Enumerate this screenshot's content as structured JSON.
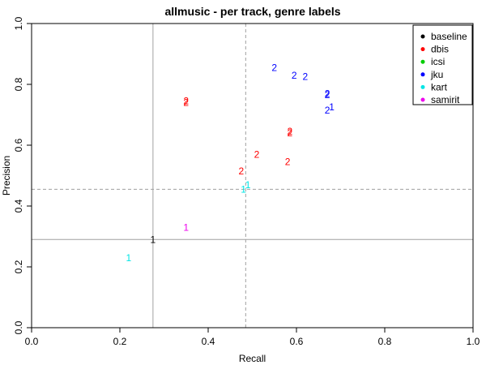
{
  "chart_data": {
    "type": "scatter",
    "title": "allmusic - per track, genre labels",
    "xlabel": "Recall",
    "ylabel": "Precision",
    "xlim": [
      0,
      1
    ],
    "ylim": [
      0,
      1
    ],
    "xticks": [
      "0.0",
      "0.2",
      "0.4",
      "0.6",
      "0.8",
      "1.0"
    ],
    "yticks": [
      "0.0",
      "0.2",
      "0.4",
      "0.6",
      "0.8",
      "1.0"
    ],
    "xtick_values": [
      0,
      0.2,
      0.4,
      0.6,
      0.8,
      1.0
    ],
    "ytick_values": [
      0,
      0.2,
      0.4,
      0.6,
      0.8,
      1.0
    ],
    "legend_position": "top-right",
    "reference_lines": [
      {
        "orientation": "vertical",
        "value": 0.275,
        "style": "solid",
        "color": "#a0a0a0"
      },
      {
        "orientation": "horizontal",
        "value": 0.29,
        "style": "solid",
        "color": "#a0a0a0"
      },
      {
        "orientation": "vertical",
        "value": 0.485,
        "style": "dashed",
        "color": "#a0a0a0"
      },
      {
        "orientation": "horizontal",
        "value": 0.455,
        "style": "dashed",
        "color": "#a0a0a0"
      }
    ],
    "series": [
      {
        "name": "baseline",
        "color": "#000000",
        "points": [
          {
            "x": 0.275,
            "y": 0.29,
            "label": "1"
          }
        ]
      },
      {
        "name": "dbis",
        "color": "#ff0000",
        "points": [
          {
            "x": 0.35,
            "y": 0.74,
            "label": "2"
          },
          {
            "x": 0.35,
            "y": 0.745,
            "label": "2"
          },
          {
            "x": 0.475,
            "y": 0.515,
            "label": "2"
          },
          {
            "x": 0.51,
            "y": 0.57,
            "label": "2"
          },
          {
            "x": 0.58,
            "y": 0.545,
            "label": "2"
          },
          {
            "x": 0.585,
            "y": 0.645,
            "label": "2"
          },
          {
            "x": 0.585,
            "y": 0.64,
            "label": "2"
          }
        ]
      },
      {
        "name": "icsi",
        "color": "#00cd00",
        "points": []
      },
      {
        "name": "jku",
        "color": "#0000ff",
        "points": [
          {
            "x": 0.55,
            "y": 0.855,
            "label": "2"
          },
          {
            "x": 0.595,
            "y": 0.83,
            "label": "2"
          },
          {
            "x": 0.62,
            "y": 0.825,
            "label": "2"
          },
          {
            "x": 0.67,
            "y": 0.77,
            "label": "2"
          },
          {
            "x": 0.67,
            "y": 0.765,
            "label": "2"
          },
          {
            "x": 0.68,
            "y": 0.725,
            "label": "1"
          },
          {
            "x": 0.67,
            "y": 0.715,
            "label": "2"
          }
        ]
      },
      {
        "name": "kart",
        "color": "#00e5e5",
        "points": [
          {
            "x": 0.22,
            "y": 0.23,
            "label": "1"
          },
          {
            "x": 0.48,
            "y": 0.455,
            "label": "1"
          },
          {
            "x": 0.49,
            "y": 0.47,
            "label": "1"
          }
        ]
      },
      {
        "name": "samirit",
        "color": "#ee00ee",
        "points": [
          {
            "x": 0.35,
            "y": 0.33,
            "label": "1"
          }
        ]
      }
    ]
  }
}
